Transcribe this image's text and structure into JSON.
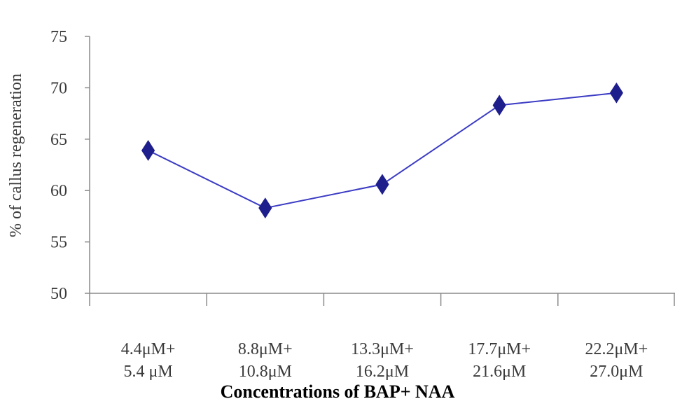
{
  "chart_data": {
    "type": "line",
    "title": "",
    "xlabel": "Concentrations of BAP+ NAA",
    "ylabel": "% of callus regeneration",
    "ylim": [
      50,
      75
    ],
    "yticks": [
      "50",
      "55",
      "60",
      "65",
      "70",
      "75"
    ],
    "categories": [
      {
        "line1": "4.4μM+",
        "line2": "5.4 μM"
      },
      {
        "line1": "8.8μM+",
        "line2": "10.8μM"
      },
      {
        "line1": "13.3μM+",
        "line2": "16.2μM"
      },
      {
        "line1": "17.7μM+",
        "line2": "21.6μM"
      },
      {
        "line1": "22.2μM+",
        "line2": "27.0μM"
      }
    ],
    "series": [
      {
        "values": [
          63.9,
          58.3,
          60.6,
          68.3,
          69.5
        ]
      }
    ],
    "grid": false,
    "legend": "none",
    "colors": {
      "line": "#3b3bc4",
      "marker": "#1e1e8c",
      "axis": "#8a8a8a",
      "text": "#3a3a3a"
    }
  }
}
